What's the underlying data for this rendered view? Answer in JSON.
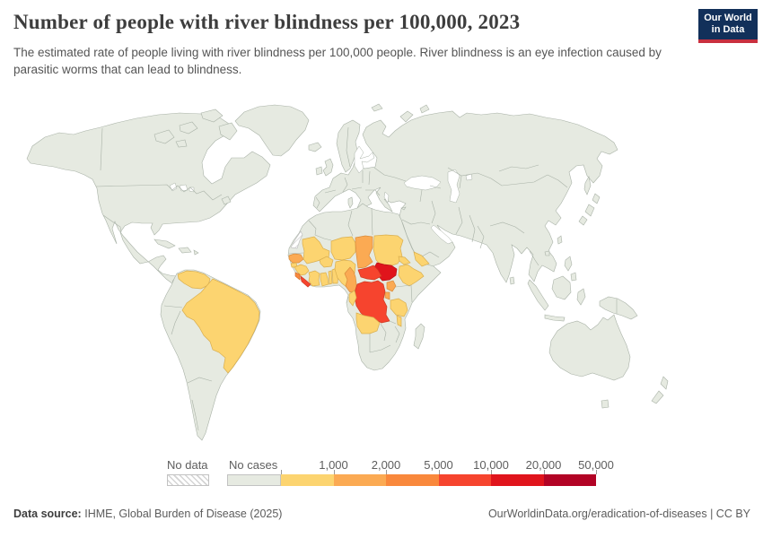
{
  "header": {
    "title": "Number of people with river blindness per 100,000, 2023",
    "subtitle": "The estimated rate of people living with river blindness per 100,000 people. River blindness is an eye infection caused by parasitic worms that can lead to blindness.",
    "logo": {
      "line1": "Our World",
      "line2": "in Data",
      "bg_color": "#12305a",
      "accent_color": "#c9303f"
    }
  },
  "legend": {
    "no_data": {
      "label": "No data",
      "stroke": "#c2c2c2"
    },
    "bins": [
      {
        "key": "no_cases",
        "label": "No cases",
        "color": "#e6eae1",
        "stroke": "#a9b2a7"
      },
      {
        "key": "lt1000",
        "label": "1,000",
        "color": "#fcd470",
        "stroke": "#d9ae4e"
      },
      {
        "key": "1k_2k",
        "label": "2,000",
        "color": "#fbaa53",
        "stroke": "#d98c3c"
      },
      {
        "key": "2k_5k",
        "label": "5,000",
        "color": "#f9883c",
        "stroke": "#d56f2b"
      },
      {
        "key": "5k_10k",
        "label": "10,000",
        "color": "#f6442e",
        "stroke": "#cc3a22"
      },
      {
        "key": "10k_20k",
        "label": "20,000",
        "color": "#e0141c",
        "stroke": "#b51217"
      },
      {
        "key": "20k_50k",
        "label": "50,000",
        "color": "#b20325",
        "stroke": "#8f021e"
      }
    ]
  },
  "map": {
    "land_color": "#e6eae1",
    "border_color": "#a9b2a7",
    "ocean_color": "#ffffff"
  },
  "footer": {
    "source_label": "Data source:",
    "source": "IHME, Global Burden of Disease (2025)",
    "url": "OurWorldinData.org/eradication-of-diseases",
    "separator": "|",
    "license": "CC BY"
  },
  "chart_data": {
    "type": "choropleth_map",
    "title": "Number of people with river blindness per 100,000, 2023",
    "year": 2023,
    "unit": "estimated cases per 100,000 people",
    "legend_thresholds": [
      1000,
      2000,
      5000,
      10000,
      20000,
      50000
    ],
    "default_bin": "no_cases",
    "bin_meaning": {
      "no_cases": "0",
      "lt1000": "0-1,000",
      "1k_2k": "1,000-2,000",
      "2k_5k": "2,000-5,000",
      "5k_10k": "5,000-10,000",
      "10k_20k": "10,000-20,000",
      "20k_50k": "20,000-50,000"
    },
    "countries": {
      "venezuela": "lt1000",
      "brazil": "lt1000",
      "senegal": "1k_2k",
      "guinea-bissau": "lt1000",
      "guinea": "lt1000",
      "sierra-leone": "2k_5k",
      "liberia": "5k_10k",
      "cote-divoire": "lt1000",
      "mali": "lt1000",
      "burkina-faso": "lt1000",
      "ghana": "lt1000",
      "togo": "lt1000",
      "benin": "lt1000",
      "niger": "lt1000",
      "nigeria": "lt1000",
      "chad": "1k_2k",
      "cameroon": "1k_2k",
      "sudan": "lt1000",
      "eritrea": "lt1000",
      "ethiopia": "lt1000",
      "yemen": "lt1000",
      "south-sudan": "10k_20k",
      "central-african-republic": "5k_10k",
      "democratic-republic-of-congo": "5k_10k",
      "congo": "lt1000",
      "uganda": "1k_2k",
      "rwanda-burundi": "1k_2k",
      "tanzania": "lt1000",
      "malawi": "lt1000",
      "angola": "lt1000",
      "western-sahara": "no_data"
    }
  }
}
